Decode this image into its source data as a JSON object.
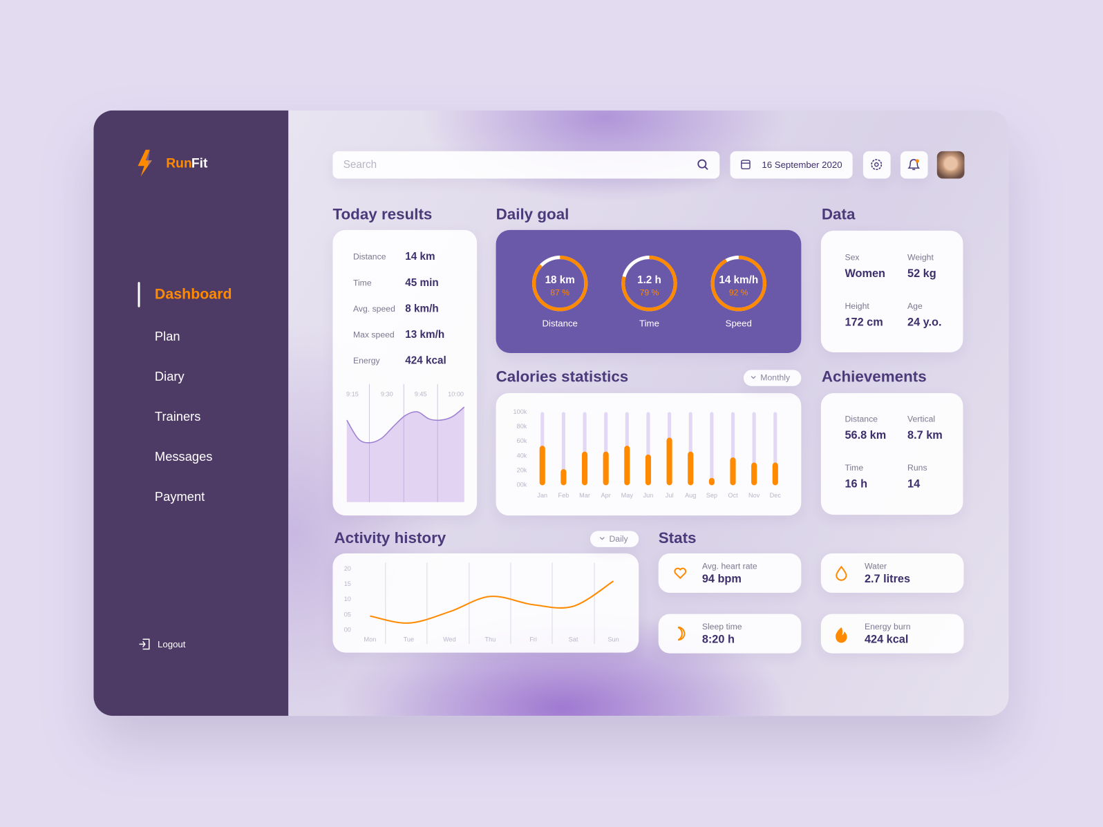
{
  "sidebar": {
    "brand": {
      "first": "Run",
      "second": "Fit"
    },
    "nav": [
      "Dashboard",
      "Plan",
      "Diary",
      "Trainers",
      "Messages",
      "Payment"
    ],
    "logout": "Logout"
  },
  "header": {
    "search_placeholder": "Search",
    "date": "16 September 2020"
  },
  "today_results": {
    "title": "Today results",
    "rows": [
      {
        "label": "Distance",
        "value": "14 km"
      },
      {
        "label": "Time",
        "value": "45 min"
      },
      {
        "label": "Avg. speed",
        "value": "8 km/h"
      },
      {
        "label": "Max speed",
        "value": "13 km/h"
      },
      {
        "label": "Energy",
        "value": "424 kcal"
      }
    ],
    "chart": {
      "type": "area",
      "xticks": [
        "9:15",
        "9:30",
        "9:45",
        "10:00"
      ],
      "values": [
        69,
        53,
        50,
        54,
        64,
        73,
        76,
        70,
        69,
        72,
        80
      ],
      "ylim": [
        0,
        100
      ],
      "color": "#e2d3f3"
    }
  },
  "daily_goal": {
    "title": "Daily goal",
    "rings": [
      {
        "value": "18 km",
        "percent": 87,
        "percent_label": "87 %",
        "label": "Distance"
      },
      {
        "value": "1.2 h",
        "percent": 79,
        "percent_label": "79 %",
        "label": "Time"
      },
      {
        "value": "14 km/h",
        "percent": 92,
        "percent_label": "92 %",
        "label": "Speed"
      }
    ]
  },
  "data": {
    "title": "Data",
    "items": [
      {
        "label": "Sex",
        "value": "Women"
      },
      {
        "label": "Weight",
        "value": "52 kg"
      },
      {
        "label": "Height",
        "value": "172 cm"
      },
      {
        "label": "Age",
        "value": "24 y.o."
      }
    ]
  },
  "calories": {
    "title": "Calories statistics",
    "period": "Monthly",
    "chart": {
      "type": "bar",
      "categories": [
        "Jan",
        "Feb",
        "Mar",
        "Apr",
        "May",
        "Jun",
        "Jul",
        "Aug",
        "Sep",
        "Oct",
        "Nov",
        "Dec"
      ],
      "values": [
        54000,
        22000,
        46000,
        46000,
        54000,
        42000,
        65000,
        46000,
        10000,
        38000,
        31000,
        31000
      ],
      "ylim": [
        0,
        100000
      ],
      "yticks": [
        {
          "value": 0,
          "label": "00k"
        },
        {
          "value": 20000,
          "label": "20k"
        },
        {
          "value": 40000,
          "label": "40k"
        },
        {
          "value": 60000,
          "label": "60k"
        },
        {
          "value": 80000,
          "label": "80k"
        },
        {
          "value": 100000,
          "label": "100k"
        }
      ],
      "color": "#ff8a00"
    }
  },
  "achievements": {
    "title": "Achievements",
    "items": [
      {
        "label": "Distance",
        "value": "56.8 km"
      },
      {
        "label": "Vertical",
        "value": "8.7 km"
      },
      {
        "label": "Time",
        "value": "16 h"
      },
      {
        "label": "Runs",
        "value": "14"
      }
    ]
  },
  "activity": {
    "title": "Activity history",
    "period": "Daily",
    "chart": {
      "type": "line",
      "categories": [
        "Mon",
        "Tue",
        "Wed",
        "Thu",
        "Fri",
        "Sat",
        "Sun"
      ],
      "values": [
        4.6,
        2.3,
        6,
        11,
        8.3,
        7.8,
        16
      ],
      "ylim": [
        0,
        20
      ],
      "yticks": [
        {
          "value": 0,
          "label": "00"
        },
        {
          "value": 5,
          "label": "05"
        },
        10,
        15,
        20
      ],
      "color": "#ff8a00"
    }
  },
  "stats": {
    "title": "Stats",
    "items": [
      {
        "label": "Avg. heart rate",
        "value": "94 bpm"
      },
      {
        "label": "Water",
        "value": "2.7 litres"
      },
      {
        "label": "Sleep time",
        "value": "8:20 h"
      },
      {
        "label": "Energy burn",
        "value": "424 kcal"
      }
    ]
  }
}
